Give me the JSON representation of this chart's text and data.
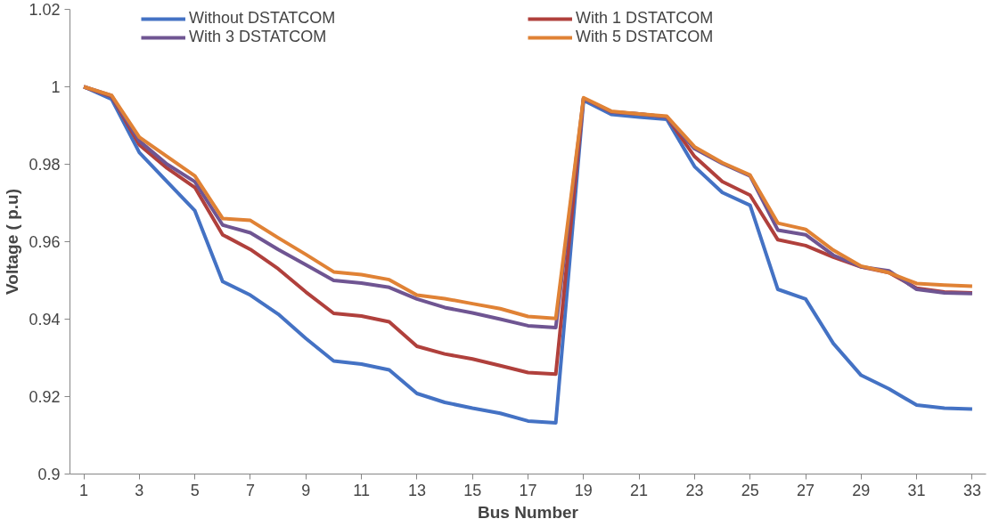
{
  "chart_data": {
    "type": "line",
    "xlabel": "Bus Number",
    "ylabel": "Voltage ( p.u)",
    "x": [
      1,
      2,
      3,
      4,
      5,
      6,
      7,
      8,
      9,
      10,
      11,
      12,
      13,
      14,
      15,
      16,
      17,
      18,
      19,
      20,
      21,
      22,
      23,
      24,
      25,
      26,
      27,
      28,
      29,
      30,
      31,
      32,
      33
    ],
    "xlim": [
      0.5,
      33.5
    ],
    "xticks": [
      1,
      3,
      5,
      7,
      9,
      11,
      13,
      15,
      17,
      19,
      21,
      23,
      25,
      27,
      29,
      31,
      33
    ],
    "ylim": [
      0.9,
      1.02
    ],
    "yticks": [
      0.9,
      0.92,
      0.94,
      0.96,
      0.98,
      {
        "value": 1,
        "label": "1"
      },
      1.02
    ],
    "grid": false,
    "legend": "top",
    "marker": "none",
    "line_style": "solid",
    "series": [
      {
        "name": "Without DSTATCOM",
        "color": "#4472c4",
        "values": [
          1.0,
          0.9968,
          0.983,
          0.9755,
          0.968,
          0.9497,
          0.9462,
          0.9413,
          0.935,
          0.9292,
          0.9284,
          0.9269,
          0.9208,
          0.9185,
          0.917,
          0.9157,
          0.9137,
          0.9132,
          0.9965,
          0.9929,
          0.9922,
          0.9916,
          0.9794,
          0.9727,
          0.9694,
          0.9477,
          0.9452,
          0.9337,
          0.9255,
          0.922,
          0.9178,
          0.917,
          0.9168
        ]
      },
      {
        "name": "With 1 DSTATCOM",
        "color": "#b0403c",
        "values": [
          1.0,
          0.9975,
          0.985,
          0.979,
          0.974,
          0.9618,
          0.958,
          0.953,
          0.947,
          0.9415,
          0.9408,
          0.9393,
          0.933,
          0.931,
          0.9297,
          0.928,
          0.9262,
          0.9258,
          0.997,
          0.9935,
          0.993,
          0.9922,
          0.982,
          0.9755,
          0.972,
          0.9605,
          0.959,
          0.956,
          0.9535,
          0.952,
          0.948,
          0.947,
          0.9468
        ]
      },
      {
        "name": "With 3 DSTATCOM",
        "color": "#6f5592",
        "values": [
          1.0,
          0.9977,
          0.986,
          0.98,
          0.9755,
          0.9643,
          0.9623,
          0.958,
          0.954,
          0.95,
          0.9493,
          0.9482,
          0.9452,
          0.943,
          0.9416,
          0.94,
          0.9383,
          0.9378,
          0.997,
          0.9935,
          0.993,
          0.9922,
          0.984,
          0.9802,
          0.977,
          0.963,
          0.9618,
          0.9565,
          0.9535,
          0.9525,
          0.9477,
          0.9468,
          0.9466
        ]
      },
      {
        "name": "With 5 DSTATCOM",
        "color": "#e08235",
        "values": [
          1.0,
          0.9978,
          0.987,
          0.982,
          0.977,
          0.966,
          0.9655,
          0.961,
          0.9567,
          0.9522,
          0.9515,
          0.9502,
          0.9462,
          0.9453,
          0.944,
          0.9427,
          0.9407,
          0.9402,
          0.9972,
          0.9937,
          0.993,
          0.9924,
          0.9845,
          0.9804,
          0.9772,
          0.9648,
          0.9632,
          0.9578,
          0.9537,
          0.952,
          0.9492,
          0.9488,
          0.9485
        ]
      }
    ]
  }
}
